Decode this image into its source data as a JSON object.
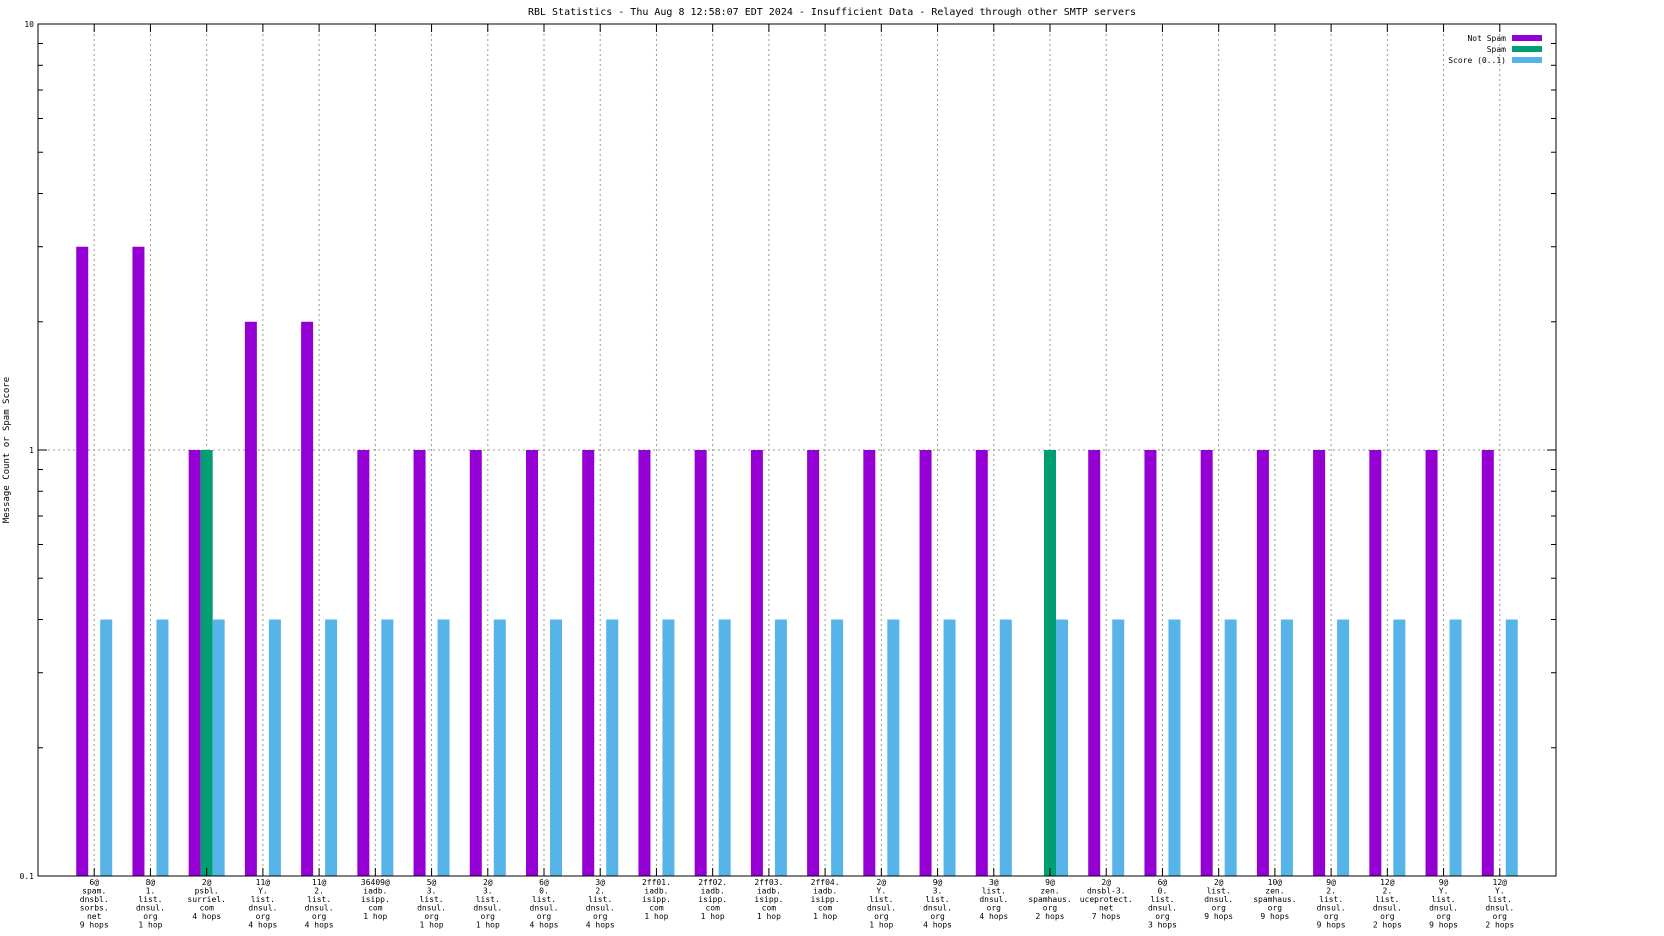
{
  "chart_data": {
    "type": "bar",
    "title": "RBL Statistics - Thu Aug  8 12:58:07 EDT 2024 - Insufficient Data - Relayed through other SMTP servers",
    "xlabel": "",
    "ylabel": "Message Count or Spam Score",
    "yscale": "log",
    "ylim": [
      0.1,
      10
    ],
    "yticks": [
      "10",
      "1",
      "0.1"
    ],
    "grid": true,
    "legend_position": "top-right",
    "categories": [
      [
        "6@",
        "spam.",
        "dnsbl.",
        "sorbs.",
        "net",
        "9 hops"
      ],
      [
        "8@",
        "1.",
        "list.",
        "dnsul.",
        "org",
        "1 hop"
      ],
      [
        "2@",
        "psbl.",
        "surriel.",
        "com",
        "4 hops"
      ],
      [
        "11@",
        "Y.",
        "list.",
        "dnsul.",
        "org",
        "4 hops"
      ],
      [
        "11@",
        "2.",
        "list.",
        "dnsul.",
        "org",
        "4 hops"
      ],
      [
        "36409@",
        "iadb.",
        "isipp.",
        "com",
        "1 hop"
      ],
      [
        "5@",
        "3.",
        "list.",
        "dnsul.",
        "org",
        "1 hop"
      ],
      [
        "2@",
        "3.",
        "list.",
        "dnsul.",
        "org",
        "1 hop"
      ],
      [
        "6@",
        "0.",
        "list.",
        "dnsul.",
        "org",
        "4 hops"
      ],
      [
        "3@",
        "2.",
        "list.",
        "dnsul.",
        "org",
        "4 hops"
      ],
      [
        "2ff01.",
        "iadb.",
        "isipp.",
        "com",
        "1 hop"
      ],
      [
        "2ff02.",
        "iadb.",
        "isipp.",
        "com",
        "1 hop"
      ],
      [
        "2ff03.",
        "iadb.",
        "isipp.",
        "com",
        "1 hop"
      ],
      [
        "2ff04.",
        "iadb.",
        "isipp.",
        "com",
        "1 hop"
      ],
      [
        "2@",
        "Y.",
        "list.",
        "dnsul.",
        "org",
        "1 hop"
      ],
      [
        "9@",
        "3.",
        "list.",
        "dnsul.",
        "org",
        "4 hops"
      ],
      [
        "3@",
        "list.",
        "dnsul.",
        "org",
        "4 hops"
      ],
      [
        "9@",
        "zen.",
        "spamhaus.",
        "org",
        "2 hops"
      ],
      [
        "2@",
        "dnsbl-3.",
        "uceprotect.",
        "net",
        "7 hops"
      ],
      [
        "6@",
        "0.",
        "list.",
        "dnsul.",
        "org",
        "3 hops"
      ],
      [
        "2@",
        "list.",
        "dnsul.",
        "org",
        "9 hops"
      ],
      [
        "10@",
        "zen.",
        "spamhaus.",
        "org",
        "9 hops"
      ],
      [
        "9@",
        "2.",
        "list.",
        "dnsul.",
        "org",
        "9 hops"
      ],
      [
        "12@",
        "2.",
        "list.",
        "dnsul.",
        "org",
        "2 hops"
      ],
      [
        "9@",
        "Y.",
        "list.",
        "dnsul.",
        "org",
        "9 hops"
      ],
      [
        "12@",
        "Y.",
        "list.",
        "dnsul.",
        "org",
        "2 hops"
      ]
    ],
    "series": [
      {
        "name": "Not Spam",
        "color": "#9400d3",
        "values": [
          3,
          3,
          1,
          2,
          2,
          1,
          1,
          1,
          1,
          1,
          1,
          1,
          1,
          1,
          1,
          1,
          1,
          null,
          1,
          1,
          1,
          1,
          1,
          1,
          1,
          1
        ]
      },
      {
        "name": "Spam",
        "color": "#009e73",
        "values": [
          null,
          null,
          1,
          null,
          null,
          null,
          null,
          null,
          null,
          null,
          null,
          null,
          null,
          null,
          null,
          null,
          null,
          1,
          null,
          null,
          null,
          null,
          null,
          null,
          null,
          null
        ]
      },
      {
        "name": "Score (0..1)",
        "color": "#56b4e9",
        "values": [
          0.4,
          0.4,
          0.4,
          0.4,
          0.4,
          0.4,
          0.4,
          0.4,
          0.4,
          0.4,
          0.4,
          0.4,
          0.4,
          0.4,
          0.4,
          0.4,
          0.4,
          0.4,
          0.4,
          0.4,
          0.4,
          0.4,
          0.4,
          0.4,
          0.4,
          0.4
        ]
      }
    ]
  }
}
